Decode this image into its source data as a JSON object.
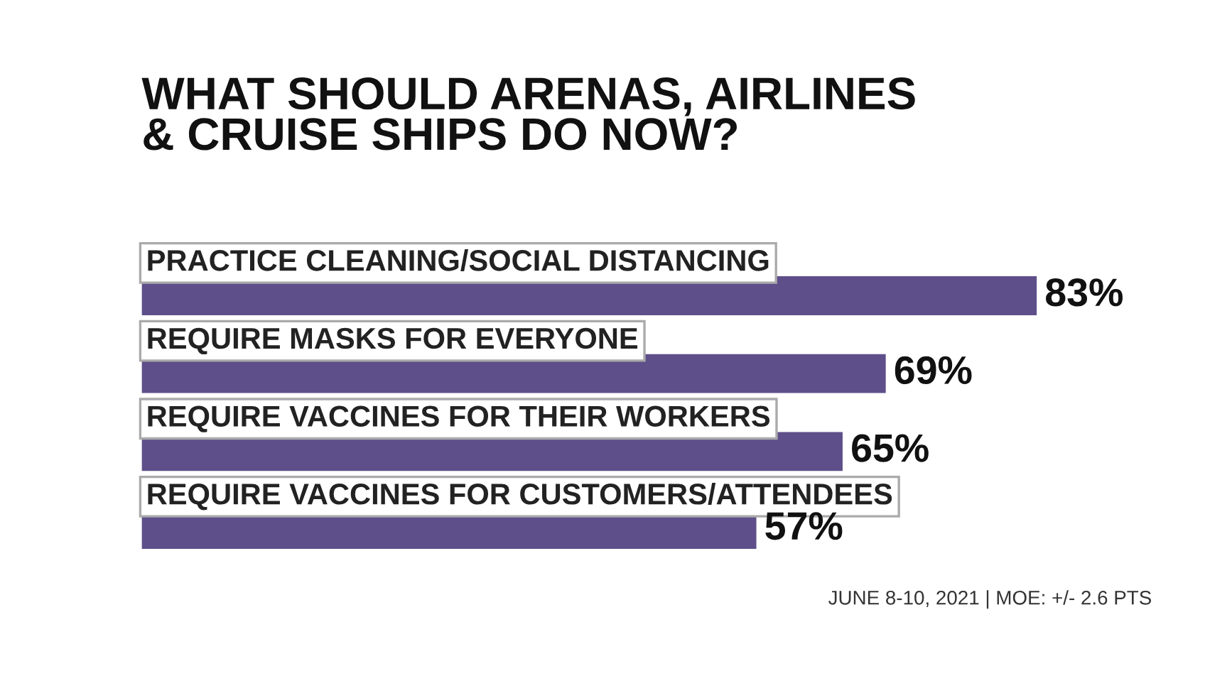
{
  "chart_data": {
    "type": "bar",
    "orientation": "horizontal",
    "title": "WHAT SHOULD ARENAS, AIRLINES\n& CRUISE SHIPS DO NOW?",
    "categories": [
      "PRACTICE CLEANING/SOCIAL DISTANCING",
      "REQUIRE MASKS FOR EVERYONE",
      "REQUIRE VACCINES FOR THEIR WORKERS",
      "REQUIRE VACCINES FOR CUSTOMERS/ATTENDEES"
    ],
    "values": [
      83,
      69,
      65,
      57
    ],
    "value_labels": [
      "83%",
      "69%",
      "65%",
      "57%"
    ],
    "color": "#5e4f8a",
    "annotations": [
      "JUNE 8-10, 2021 | MOE: +/- 2.6 PTS"
    ]
  }
}
